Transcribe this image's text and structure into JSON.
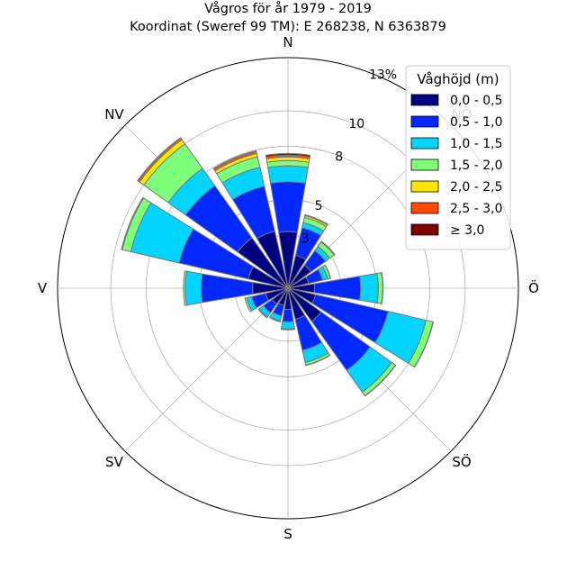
{
  "chart_data": {
    "type": "polar-stacked-bar",
    "title": "Vågros för år 1979 - 2019",
    "subtitle": "Koordinat (Sweref 99 TM): E 268238, N 6363879",
    "directions": [
      "N",
      "NNÖ",
      "NÖ",
      "ÖNÖ",
      "Ö",
      "ÖSÖ",
      "SÖ",
      "SSÖ",
      "S",
      "SSV",
      "SV",
      "VSV",
      "V",
      "VNV",
      "NV",
      "NNV"
    ],
    "direction_labels": [
      "N",
      "NÖ",
      "Ö",
      "SÖ",
      "S",
      "SV",
      "V",
      "NV"
    ],
    "radial_ticks": [
      3,
      5,
      8,
      10,
      13
    ],
    "radial_tick_labels": [
      "3",
      "5",
      "8",
      "10",
      "13%"
    ],
    "rmax": 13,
    "legend": {
      "title": "Våghöjd (m)",
      "position": "top-right"
    },
    "series": [
      {
        "name": "0,0 - 0,5",
        "color": "#000080",
        "values": [
          3.2,
          1.9,
          1.6,
          1.2,
          1.5,
          1.6,
          2.3,
          1.8,
          1.2,
          1.0,
          1.1,
          1.3,
          2.0,
          2.3,
          3.5,
          3.3
        ]
      },
      {
        "name": "0,5 - 1,0",
        "color": "#0028ff",
        "values": [
          2.8,
          1.6,
          1.0,
          0.8,
          2.6,
          4.2,
          3.4,
          1.8,
          0.7,
          0.6,
          0.6,
          0.8,
          2.9,
          4.0,
          3.6,
          2.6
        ]
      },
      {
        "name": "1,0 - 1,5",
        "color": "#00d4ff",
        "values": [
          0.9,
          0.3,
          0.3,
          0.3,
          1.0,
          2.2,
          1.5,
          0.7,
          0.4,
          0.3,
          0.3,
          0.3,
          0.9,
          2.8,
          1.2,
          1.1
        ]
      },
      {
        "name": "1,5 - 2,0",
        "color": "#7dff7a",
        "values": [
          0.3,
          0.3,
          0.3,
          0.15,
          0.25,
          0.4,
          0.25,
          0.15,
          0.05,
          0.05,
          0.05,
          0.1,
          0.1,
          0.5,
          1.7,
          0.6
        ]
      },
      {
        "name": "2,0 - 2,5",
        "color": "#ffe600",
        "values": [
          0.2,
          0.1,
          0.05,
          0.02,
          0.02,
          0.02,
          0.02,
          0.02,
          0.0,
          0.0,
          0.0,
          0.0,
          0.0,
          0.05,
          0.3,
          0.2
        ]
      },
      {
        "name": "2,5 - 3,0",
        "color": "#ff4a00",
        "values": [
          0.1,
          0.05,
          0.0,
          0.0,
          0.0,
          0.0,
          0.0,
          0.0,
          0.0,
          0.0,
          0.0,
          0.0,
          0.0,
          0.0,
          0.08,
          0.1
        ]
      },
      {
        "name": "≥ 3,0",
        "color": "#800000",
        "values": [
          0.1,
          0.0,
          0.0,
          0.0,
          0.0,
          0.0,
          0.0,
          0.0,
          0.0,
          0.0,
          0.0,
          0.0,
          0.0,
          0.0,
          0.05,
          0.05
        ]
      }
    ],
    "grid": true
  }
}
